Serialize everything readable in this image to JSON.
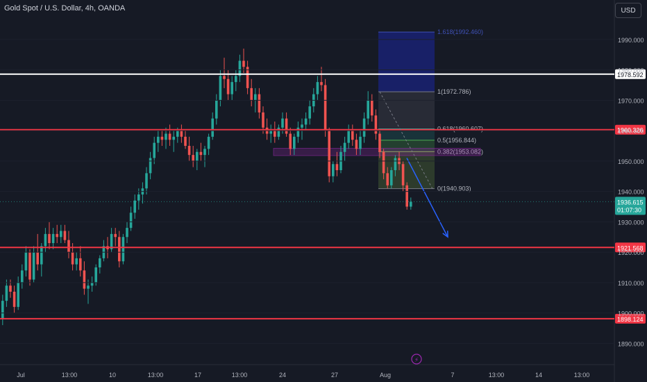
{
  "header": {
    "title": "Gold Spot / U.S. Dollar, 4h, OANDA",
    "currency": "USD"
  },
  "colors": {
    "background": "#161a25",
    "bull": "#26a69a",
    "bear": "#ef5350",
    "level_line": "#f23645",
    "white_line": "#ffffff",
    "fib_line": "#787b86",
    "arrow": "#2962ff",
    "marker": "#9c27b0"
  },
  "chart_data": {
    "type": "candlestick",
    "y_axis": {
      "ticks": [
        "1890.000",
        "1900.000",
        "1910.000",
        "1920.000",
        "1930.000",
        "1940.000",
        "1950.000",
        "1960.000",
        "1970.000",
        "1980.000",
        "1990.000"
      ],
      "ylim": [
        1883,
        2003
      ]
    },
    "x_axis": {
      "ticks": [
        "Jul",
        "13:00",
        "10",
        "13:00",
        "17",
        "13:00",
        "24",
        "27",
        "Aug",
        "7",
        "13:00",
        "14",
        "13:00"
      ]
    },
    "horizontal_levels": [
      {
        "price": 1978.592,
        "label": "1978.592",
        "color": "white"
      },
      {
        "price": 1960.326,
        "label": "1960.326",
        "color": "red"
      },
      {
        "price": 1921.568,
        "label": "1921.568",
        "color": "red"
      },
      {
        "price": 1898.124,
        "label": "1898.124",
        "color": "red"
      }
    ],
    "current_price": {
      "price": 1936.615,
      "label": "1936.615",
      "countdown": "01:07:30"
    },
    "fibonacci": [
      {
        "ratio": "1.618",
        "price": 1992.46,
        "label": "1.618(1992.460)"
      },
      {
        "ratio": "1",
        "price": 1972.786,
        "label": "1(1972.786)"
      },
      {
        "ratio": "0.618",
        "price": 1960.607,
        "label": "0.618(1960.607)"
      },
      {
        "ratio": "0.5",
        "price": 1956.844,
        "label": "0.5(1956.844)"
      },
      {
        "ratio": "0.382",
        "price": 1953.082,
        "label": "0.382(1953.082)"
      },
      {
        "ratio": "0",
        "price": 1940.903,
        "label": "0(1940.903)"
      }
    ],
    "zone": {
      "top": 1954.2,
      "bottom": 1951.8
    },
    "candles": [
      {
        "o": 1898.0,
        "h": 1906.0,
        "l": 1896.0,
        "c": 1904.0
      },
      {
        "o": 1904.0,
        "h": 1911.0,
        "l": 1902.0,
        "c": 1909.0
      },
      {
        "o": 1909.0,
        "h": 1911.0,
        "l": 1905.0,
        "c": 1907.0
      },
      {
        "o": 1907.0,
        "h": 1909.0,
        "l": 1900.0,
        "c": 1902.0
      },
      {
        "o": 1902.0,
        "h": 1912.0,
        "l": 1901.0,
        "c": 1910.0
      },
      {
        "o": 1910.0,
        "h": 1916.0,
        "l": 1908.0,
        "c": 1914.0
      },
      {
        "o": 1914.0,
        "h": 1922.0,
        "l": 1912.0,
        "c": 1920.0
      },
      {
        "o": 1920.0,
        "h": 1921.0,
        "l": 1909.0,
        "c": 1911.0
      },
      {
        "o": 1911.0,
        "h": 1922.0,
        "l": 1910.0,
        "c": 1920.0
      },
      {
        "o": 1920.0,
        "h": 1926.0,
        "l": 1914.0,
        "c": 1916.0
      },
      {
        "o": 1916.0,
        "h": 1923.0,
        "l": 1912.0,
        "c": 1922.0
      },
      {
        "o": 1922.0,
        "h": 1928.0,
        "l": 1920.0,
        "c": 1926.0
      },
      {
        "o": 1926.0,
        "h": 1930.0,
        "l": 1921.0,
        "c": 1923.0
      },
      {
        "o": 1923.0,
        "h": 1928.0,
        "l": 1921.0,
        "c": 1926.0
      },
      {
        "o": 1926.0,
        "h": 1929.0,
        "l": 1923.0,
        "c": 1925.0
      },
      {
        "o": 1925.0,
        "h": 1929.0,
        "l": 1923.0,
        "c": 1927.0
      },
      {
        "o": 1927.0,
        "h": 1929.0,
        "l": 1923.0,
        "c": 1924.0
      },
      {
        "o": 1924.0,
        "h": 1927.0,
        "l": 1918.0,
        "c": 1920.0
      },
      {
        "o": 1920.0,
        "h": 1923.0,
        "l": 1914.0,
        "c": 1916.0
      },
      {
        "o": 1916.0,
        "h": 1920.0,
        "l": 1914.0,
        "c": 1918.0
      },
      {
        "o": 1918.0,
        "h": 1922.0,
        "l": 1912.0,
        "c": 1914.0
      },
      {
        "o": 1914.0,
        "h": 1917.0,
        "l": 1906.0,
        "c": 1908.0
      },
      {
        "o": 1908.0,
        "h": 1911.0,
        "l": 1903.0,
        "c": 1909.0
      },
      {
        "o": 1909.0,
        "h": 1912.0,
        "l": 1907.0,
        "c": 1910.0
      },
      {
        "o": 1910.0,
        "h": 1916.0,
        "l": 1909.0,
        "c": 1915.0
      },
      {
        "o": 1915.0,
        "h": 1919.0,
        "l": 1913.0,
        "c": 1918.0
      },
      {
        "o": 1918.0,
        "h": 1924.0,
        "l": 1917.0,
        "c": 1922.0
      },
      {
        "o": 1922.0,
        "h": 1925.0,
        "l": 1918.0,
        "c": 1921.0
      },
      {
        "o": 1921.0,
        "h": 1928.0,
        "l": 1920.0,
        "c": 1926.0
      },
      {
        "o": 1926.0,
        "h": 1928.0,
        "l": 1922.0,
        "c": 1925.0
      },
      {
        "o": 1925.0,
        "h": 1927.0,
        "l": 1915.0,
        "c": 1917.0
      },
      {
        "o": 1917.0,
        "h": 1926.0,
        "l": 1916.0,
        "c": 1925.0
      },
      {
        "o": 1925.0,
        "h": 1930.0,
        "l": 1923.0,
        "c": 1928.0
      },
      {
        "o": 1928.0,
        "h": 1935.0,
        "l": 1927.0,
        "c": 1933.0
      },
      {
        "o": 1933.0,
        "h": 1939.0,
        "l": 1931.0,
        "c": 1937.0
      },
      {
        "o": 1937.0,
        "h": 1941.0,
        "l": 1934.0,
        "c": 1939.0
      },
      {
        "o": 1939.0,
        "h": 1943.0,
        "l": 1936.0,
        "c": 1941.0
      },
      {
        "o": 1941.0,
        "h": 1948.0,
        "l": 1939.0,
        "c": 1946.0
      },
      {
        "o": 1946.0,
        "h": 1953.0,
        "l": 1944.0,
        "c": 1951.0
      },
      {
        "o": 1951.0,
        "h": 1958.0,
        "l": 1949.0,
        "c": 1956.0
      },
      {
        "o": 1956.0,
        "h": 1960.0,
        "l": 1953.0,
        "c": 1958.0
      },
      {
        "o": 1958.0,
        "h": 1960.0,
        "l": 1955.0,
        "c": 1957.0
      },
      {
        "o": 1957.0,
        "h": 1961.0,
        "l": 1954.0,
        "c": 1959.0
      },
      {
        "o": 1959.0,
        "h": 1962.0,
        "l": 1955.0,
        "c": 1957.0
      },
      {
        "o": 1957.0,
        "h": 1960.0,
        "l": 1953.0,
        "c": 1958.0
      },
      {
        "o": 1958.0,
        "h": 1961.0,
        "l": 1956.0,
        "c": 1960.0
      },
      {
        "o": 1960.0,
        "h": 1962.0,
        "l": 1956.0,
        "c": 1958.0
      },
      {
        "o": 1958.0,
        "h": 1960.0,
        "l": 1954.0,
        "c": 1955.0
      },
      {
        "o": 1955.0,
        "h": 1958.0,
        "l": 1950.0,
        "c": 1952.0
      },
      {
        "o": 1952.0,
        "h": 1955.0,
        "l": 1948.0,
        "c": 1950.0
      },
      {
        "o": 1950.0,
        "h": 1954.0,
        "l": 1947.0,
        "c": 1953.0
      },
      {
        "o": 1953.0,
        "h": 1956.0,
        "l": 1950.0,
        "c": 1952.0
      },
      {
        "o": 1952.0,
        "h": 1955.0,
        "l": 1948.0,
        "c": 1954.0
      },
      {
        "o": 1954.0,
        "h": 1959.0,
        "l": 1952.0,
        "c": 1958.0
      },
      {
        "o": 1958.0,
        "h": 1966.0,
        "l": 1957.0,
        "c": 1964.0
      },
      {
        "o": 1964.0,
        "h": 1972.0,
        "l": 1962.0,
        "c": 1970.0
      },
      {
        "o": 1970.0,
        "h": 1980.0,
        "l": 1968.0,
        "c": 1978.0
      },
      {
        "o": 1978.0,
        "h": 1984.0,
        "l": 1974.0,
        "c": 1977.0
      },
      {
        "o": 1977.0,
        "h": 1980.0,
        "l": 1970.0,
        "c": 1972.0
      },
      {
        "o": 1972.0,
        "h": 1978.0,
        "l": 1970.0,
        "c": 1976.0
      },
      {
        "o": 1976.0,
        "h": 1980.0,
        "l": 1973.0,
        "c": 1978.0
      },
      {
        "o": 1978.0,
        "h": 1985.0,
        "l": 1976.0,
        "c": 1983.0
      },
      {
        "o": 1983.0,
        "h": 1987.0,
        "l": 1979.0,
        "c": 1981.0
      },
      {
        "o": 1981.0,
        "h": 1983.0,
        "l": 1972.0,
        "c": 1974.0
      },
      {
        "o": 1974.0,
        "h": 1977.0,
        "l": 1968.0,
        "c": 1970.0
      },
      {
        "o": 1970.0,
        "h": 1974.0,
        "l": 1966.0,
        "c": 1972.0
      },
      {
        "o": 1972.0,
        "h": 1974.0,
        "l": 1964.0,
        "c": 1966.0
      },
      {
        "o": 1966.0,
        "h": 1968.0,
        "l": 1959.0,
        "c": 1961.0
      },
      {
        "o": 1961.0,
        "h": 1964.0,
        "l": 1957.0,
        "c": 1959.0
      },
      {
        "o": 1959.0,
        "h": 1962.0,
        "l": 1956.0,
        "c": 1960.0
      },
      {
        "o": 1960.0,
        "h": 1963.0,
        "l": 1956.0,
        "c": 1958.0
      },
      {
        "o": 1958.0,
        "h": 1962.0,
        "l": 1957.0,
        "c": 1961.0
      },
      {
        "o": 1961.0,
        "h": 1966.0,
        "l": 1959.0,
        "c": 1964.0
      },
      {
        "o": 1964.0,
        "h": 1966.0,
        "l": 1958.0,
        "c": 1959.0
      },
      {
        "o": 1959.0,
        "h": 1961.0,
        "l": 1952.0,
        "c": 1954.0
      },
      {
        "o": 1954.0,
        "h": 1959.0,
        "l": 1952.0,
        "c": 1958.0
      },
      {
        "o": 1958.0,
        "h": 1963.0,
        "l": 1956.0,
        "c": 1961.0
      },
      {
        "o": 1961.0,
        "h": 1964.0,
        "l": 1957.0,
        "c": 1962.0
      },
      {
        "o": 1962.0,
        "h": 1966.0,
        "l": 1960.0,
        "c": 1964.0
      },
      {
        "o": 1964.0,
        "h": 1970.0,
        "l": 1962.0,
        "c": 1968.0
      },
      {
        "o": 1968.0,
        "h": 1974.0,
        "l": 1966.0,
        "c": 1972.0
      },
      {
        "o": 1972.0,
        "h": 1978.0,
        "l": 1970.0,
        "c": 1976.0
      },
      {
        "o": 1976.0,
        "h": 1981.0,
        "l": 1973.0,
        "c": 1975.0
      },
      {
        "o": 1975.0,
        "h": 1977.0,
        "l": 1958.0,
        "c": 1960.0
      },
      {
        "o": 1960.0,
        "h": 1961.0,
        "l": 1943.0,
        "c": 1945.0
      },
      {
        "o": 1945.0,
        "h": 1950.0,
        "l": 1943.0,
        "c": 1949.0
      },
      {
        "o": 1949.0,
        "h": 1953.0,
        "l": 1945.0,
        "c": 1947.0
      },
      {
        "o": 1947.0,
        "h": 1955.0,
        "l": 1946.0,
        "c": 1953.0
      },
      {
        "o": 1953.0,
        "h": 1958.0,
        "l": 1950.0,
        "c": 1956.0
      },
      {
        "o": 1956.0,
        "h": 1962.0,
        "l": 1954.0,
        "c": 1960.0
      },
      {
        "o": 1960.0,
        "h": 1962.0,
        "l": 1955.0,
        "c": 1957.0
      },
      {
        "o": 1957.0,
        "h": 1959.0,
        "l": 1952.0,
        "c": 1954.0
      },
      {
        "o": 1954.0,
        "h": 1960.0,
        "l": 1952.0,
        "c": 1958.0
      },
      {
        "o": 1958.0,
        "h": 1966.0,
        "l": 1956.0,
        "c": 1964.0
      },
      {
        "o": 1964.0,
        "h": 1973.0,
        "l": 1962.0,
        "c": 1970.0
      },
      {
        "o": 1970.0,
        "h": 1972.0,
        "l": 1963.0,
        "c": 1965.0
      },
      {
        "o": 1965.0,
        "h": 1967.0,
        "l": 1957.0,
        "c": 1959.0
      },
      {
        "o": 1959.0,
        "h": 1960.0,
        "l": 1951.0,
        "c": 1953.0
      },
      {
        "o": 1953.0,
        "h": 1954.0,
        "l": 1944.0,
        "c": 1946.0
      },
      {
        "o": 1946.0,
        "h": 1948.0,
        "l": 1941.0,
        "c": 1942.0
      },
      {
        "o": 1942.0,
        "h": 1948.0,
        "l": 1941.0,
        "c": 1947.0
      },
      {
        "o": 1947.0,
        "h": 1952.0,
        "l": 1945.0,
        "c": 1951.0
      },
      {
        "o": 1951.0,
        "h": 1953.0,
        "l": 1947.0,
        "c": 1949.0
      },
      {
        "o": 1949.0,
        "h": 1950.0,
        "l": 1940.0,
        "c": 1942.0
      },
      {
        "o": 1942.0,
        "h": 1943.0,
        "l": 1934.0,
        "c": 1935.0
      },
      {
        "o": 1935.0,
        "h": 1938.0,
        "l": 1934.0,
        "c": 1936.6
      }
    ],
    "annotations": {
      "dotted_trend_line": {
        "from_price": 1972.8,
        "to_price": 1940.9
      },
      "arrow": {
        "from_price": 1951.0,
        "to_price": 1925.0
      }
    }
  }
}
